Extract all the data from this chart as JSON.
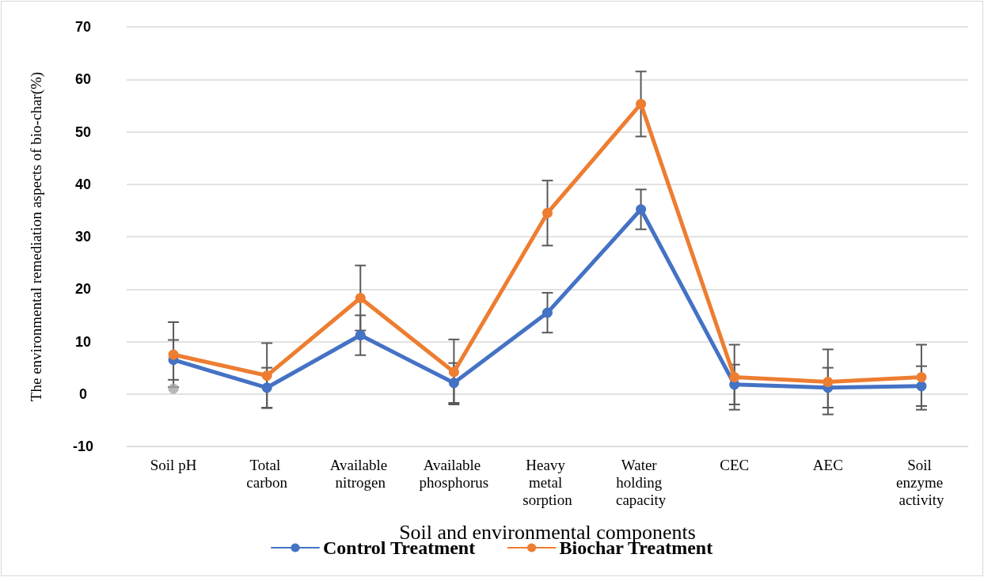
{
  "chart_data": {
    "type": "line",
    "xlabel": "Soil and environmental components",
    "ylabel": "The environmental remediation aspects of bio-char(%)",
    "categories": [
      "Soil pH",
      "Total carbon",
      "Available nitrogen",
      "Available phosphorus",
      "Heavy metal sorption",
      "Water holding capacity",
      "CEC",
      "AEC",
      "Soil enzyme activity"
    ],
    "series": [
      {
        "name": "Control Treatment",
        "color": "#4472c4",
        "values": [
          6.5,
          1.2,
          11.2,
          2.1,
          15.5,
          35.2,
          1.8,
          1.2,
          1.5
        ],
        "errors": [
          3.8,
          3.8,
          3.8,
          3.8,
          3.8,
          3.8,
          3.8,
          3.8,
          3.8
        ]
      },
      {
        "name": "Biochar Treatment",
        "color": "#ed7d31",
        "values": [
          7.5,
          3.5,
          18.3,
          4.2,
          34.5,
          55.3,
          3.2,
          2.3,
          3.2
        ],
        "errors": [
          6.2,
          6.2,
          6.2,
          6.2,
          6.2,
          6.2,
          6.2,
          6.2,
          6.2
        ]
      },
      {
        "type": "scatter",
        "color": "#a5a5a5",
        "x": [
          "Soil pH"
        ],
        "values": [
          1.0
        ]
      }
    ],
    "ylim": [
      -10,
      70
    ],
    "yticks": [
      -10,
      0,
      10,
      20,
      30,
      40,
      50,
      60,
      70
    ],
    "grid": "y",
    "legend": "bottom",
    "marker": "circle",
    "line_style": "solid"
  }
}
